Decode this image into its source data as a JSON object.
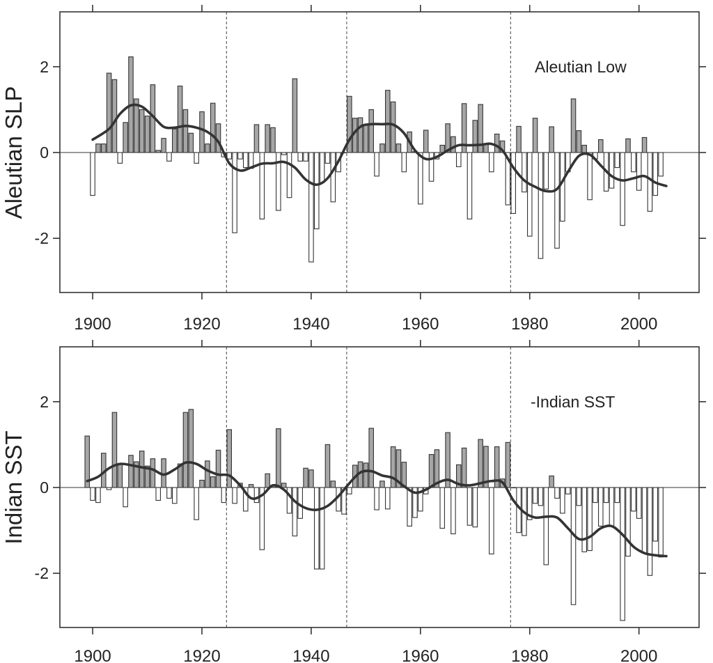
{
  "chart_data": [
    {
      "type": "bar",
      "ylabel": "Aleutian SLP",
      "annotation": "Aleutian Low",
      "xlim": [
        1894,
        2011
      ],
      "ylim": [
        -3.2,
        3.2
      ],
      "x_ticks": [
        1900,
        1920,
        1940,
        1960,
        1980,
        2000
      ],
      "y_ticks": [
        2,
        0,
        -2
      ],
      "y_tick_labels": [
        "2",
        "0",
        "-2"
      ],
      "reference_lines_x": [
        1924.5,
        1946.5,
        1976.5
      ],
      "years_start": 1900,
      "values": [
        -1.0,
        0.2,
        0.2,
        1.85,
        1.7,
        -0.25,
        0.7,
        2.23,
        1.25,
        1.0,
        0.85,
        1.58,
        0.05,
        0.33,
        -0.2,
        0.55,
        1.55,
        1.0,
        0.45,
        -0.25,
        0.95,
        0.2,
        1.15,
        0.67,
        -0.1,
        -0.15,
        -1.87,
        -0.15,
        -0.35,
        -0.37,
        0.65,
        -1.55,
        0.65,
        0.58,
        -1.35,
        -0.05,
        -1.05,
        1.72,
        -0.2,
        -0.2,
        -2.55,
        -1.78,
        -0.7,
        -0.25,
        -1.15,
        -0.45,
        0.0,
        1.31,
        0.8,
        0.81,
        0.65,
        1.0,
        -0.55,
        0.2,
        1.45,
        1.18,
        0.2,
        -0.45,
        0.48,
        0.02,
        -1.2,
        0.52,
        -0.67,
        -0.15,
        0.17,
        0.67,
        0.37,
        -0.33,
        1.14,
        -1.55,
        0.75,
        1.12,
        0.2,
        -0.45,
        0.43,
        0.27,
        -1.22,
        -1.42,
        0.61,
        -0.92,
        -1.95,
        0.8,
        -2.47,
        -0.85,
        0.6,
        -2.23,
        -1.6,
        -0.45,
        1.25,
        0.51,
        0.17,
        -1.1,
        -0.15,
        0.3,
        -0.9,
        -0.83,
        -0.35,
        -1.7,
        0.32,
        -0.45,
        -0.88,
        0.35,
        -1.37,
        -1.0,
        -0.55
      ],
      "smoothed_series": {
        "x": [
          1900,
          1903,
          1905,
          1907,
          1909,
          1911,
          1913,
          1915,
          1917,
          1919,
          1921,
          1923,
          1925,
          1927,
          1929,
          1931,
          1933,
          1935,
          1937,
          1939,
          1941,
          1943,
          1945,
          1947,
          1949,
          1951,
          1953,
          1955,
          1957,
          1959,
          1961,
          1963,
          1965,
          1967,
          1969,
          1971,
          1973,
          1975,
          1977,
          1979,
          1981,
          1983,
          1985,
          1987,
          1989,
          1991,
          1993,
          1995,
          1997,
          1999,
          2001,
          2003,
          2005
        ],
        "y": [
          0.3,
          0.55,
          0.9,
          1.1,
          1.07,
          0.85,
          0.6,
          0.58,
          0.62,
          0.58,
          0.48,
          0.25,
          -0.25,
          -0.42,
          -0.35,
          -0.26,
          -0.25,
          -0.22,
          -0.35,
          -0.63,
          -0.75,
          -0.6,
          -0.2,
          0.3,
          0.6,
          0.66,
          0.66,
          0.65,
          0.45,
          0.05,
          -0.15,
          -0.1,
          0.05,
          0.17,
          0.17,
          0.18,
          0.2,
          0.05,
          -0.35,
          -0.65,
          -0.8,
          -0.9,
          -0.85,
          -0.45,
          -0.08,
          -0.05,
          -0.3,
          -0.55,
          -0.65,
          -0.6,
          -0.55,
          -0.7,
          -0.78
        ]
      }
    },
    {
      "type": "bar",
      "ylabel": "Indian SST",
      "annotation": "-Indian SST",
      "xlim": [
        1894,
        2011
      ],
      "ylim": [
        -3.2,
        3.2
      ],
      "x_ticks": [
        1900,
        1920,
        1940,
        1960,
        1980,
        2000
      ],
      "y_ticks": [
        2,
        0,
        -2
      ],
      "y_tick_labels": [
        "2",
        "0",
        "-2"
      ],
      "reference_lines_x": [
        1924.5,
        1946.5,
        1976.5
      ],
      "years_start": 1899,
      "values": [
        1.2,
        -0.3,
        -0.35,
        0.8,
        -0.05,
        1.75,
        0.55,
        -0.45,
        0.75,
        0.6,
        0.85,
        0.5,
        0.67,
        -0.3,
        0.67,
        -0.25,
        -0.37,
        0.55,
        1.75,
        1.82,
        -0.75,
        0.17,
        0.62,
        0.25,
        0.87,
        -0.35,
        1.35,
        -0.37,
        0.1,
        -0.55,
        0.07,
        -0.35,
        -1.45,
        0.32,
        0.05,
        1.37,
        0.1,
        -0.6,
        -1.13,
        -0.72,
        0.45,
        0.41,
        -1.9,
        -1.9,
        1.0,
        0.15,
        -0.55,
        -0.62,
        -0.15,
        0.52,
        0.6,
        0.57,
        1.38,
        -0.52,
        0.15,
        -0.5,
        0.95,
        0.88,
        0.59,
        -0.9,
        -0.7,
        -0.55,
        -0.15,
        0.77,
        0.88,
        -0.95,
        1.28,
        -1.08,
        0.53,
        0.92,
        -0.88,
        -0.92,
        1.12,
        0.96,
        -1.55,
        0.95,
        0.2,
        1.05,
        0.0,
        -1.05,
        -1.12,
        -0.75,
        -0.37,
        -0.42,
        -1.8,
        0.27,
        -0.25,
        -0.6,
        -0.15,
        -2.73,
        -0.42,
        -1.5,
        -1.47,
        -0.35,
        -0.9,
        -0.35,
        -0.9,
        -0.35,
        -3.1,
        -1.6,
        -0.55,
        -0.72,
        -1.53,
        -2.05,
        -1.25,
        -1.62
      ],
      "smoothed_series": {
        "x": [
          1899,
          1901,
          1903,
          1905,
          1907,
          1909,
          1911,
          1913,
          1915,
          1917,
          1919,
          1921,
          1923,
          1925,
          1927,
          1929,
          1931,
          1933,
          1935,
          1937,
          1939,
          1941,
          1943,
          1945,
          1947,
          1949,
          1951,
          1953,
          1955,
          1957,
          1959,
          1961,
          1963,
          1965,
          1967,
          1969,
          1971,
          1973,
          1975,
          1977,
          1979,
          1981,
          1983,
          1985,
          1987,
          1989,
          1991,
          1993,
          1995,
          1997,
          1999,
          2001,
          2003,
          2005
        ],
        "y": [
          0.15,
          0.25,
          0.45,
          0.55,
          0.52,
          0.47,
          0.42,
          0.3,
          0.42,
          0.58,
          0.55,
          0.4,
          0.3,
          0.28,
          0.05,
          -0.25,
          -0.18,
          0.05,
          -0.05,
          -0.32,
          -0.48,
          -0.52,
          -0.43,
          -0.2,
          0.1,
          0.35,
          0.38,
          0.28,
          0.22,
          0.03,
          -0.12,
          -0.05,
          0.1,
          0.18,
          0.08,
          0.05,
          0.1,
          0.15,
          0.12,
          -0.3,
          -0.58,
          -0.7,
          -0.68,
          -0.7,
          -0.95,
          -1.2,
          -1.15,
          -0.95,
          -0.9,
          -1.1,
          -1.38,
          -1.53,
          -1.58,
          -1.6
        ]
      }
    }
  ]
}
